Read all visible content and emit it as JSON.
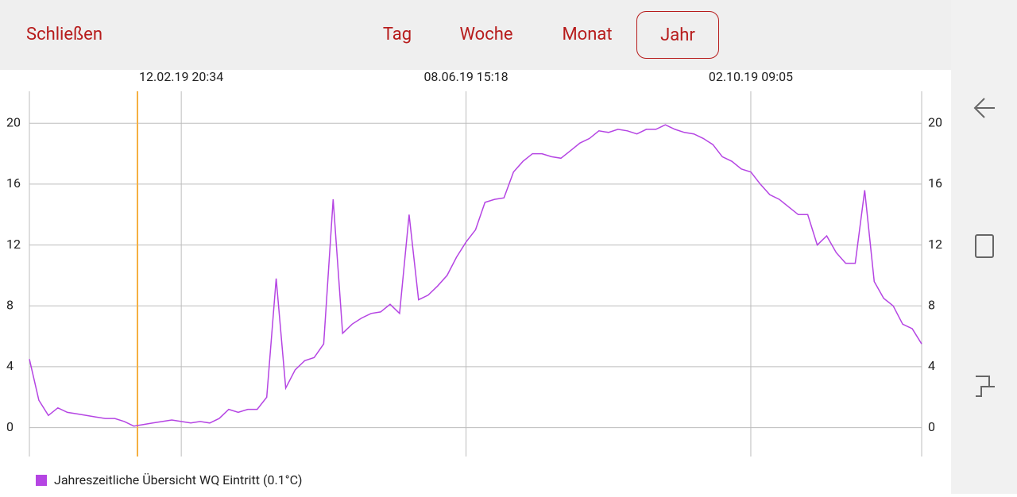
{
  "header": {
    "close": "Schließen",
    "tabs": [
      "Tag",
      "Woche",
      "Monat",
      "Jahr"
    ],
    "selected": 3
  },
  "chart_data": {
    "type": "line",
    "categories": [
      null,
      null,
      null,
      null,
      null,
      null,
      null,
      null,
      null,
      null,
      null,
      null,
      null,
      null,
      null,
      null,
      "12.02.19 20:34",
      null,
      null,
      null,
      null,
      null,
      null,
      null,
      null,
      null,
      null,
      null,
      null,
      null,
      null,
      null,
      null,
      null,
      null,
      null,
      null,
      null,
      null,
      null,
      null,
      null,
      null,
      null,
      null,
      null,
      "08.06.19 15:18",
      null,
      null,
      null,
      null,
      null,
      null,
      null,
      null,
      null,
      null,
      null,
      null,
      null,
      null,
      null,
      null,
      null,
      null,
      null,
      null,
      null,
      null,
      null,
      null,
      null,
      null,
      null,
      null,
      null,
      "02.10.19 09:05",
      null,
      null,
      null,
      null,
      null,
      null,
      null,
      null,
      null,
      null,
      null,
      null,
      null,
      null,
      null,
      null,
      null,
      null
    ],
    "series": [
      {
        "name": "Jahreszeitliche Übersicht WQ Eintritt (0.1°C)",
        "color": "#b545e3",
        "values": [
          4.5,
          1.8,
          0.8,
          1.3,
          1.0,
          0.9,
          0.8,
          0.7,
          0.6,
          0.6,
          0.4,
          0.1,
          0.2,
          0.3,
          0.4,
          0.5,
          0.4,
          0.3,
          0.4,
          0.3,
          0.6,
          1.2,
          1.0,
          1.2,
          1.2,
          2.0,
          9.8,
          2.6,
          3.8,
          4.4,
          4.6,
          5.5,
          15.0,
          6.2,
          6.8,
          7.2,
          7.5,
          7.6,
          8.1,
          7.5,
          14.0,
          8.4,
          8.7,
          9.3,
          10.0,
          11.2,
          12.2,
          13.0,
          14.8,
          15.0,
          15.1,
          16.8,
          17.5,
          18.0,
          18.0,
          17.8,
          17.7,
          18.2,
          18.7,
          19.0,
          19.5,
          19.4,
          19.6,
          19.5,
          19.3,
          19.6,
          19.6,
          19.9,
          19.6,
          19.4,
          19.3,
          19.0,
          18.6,
          17.8,
          17.5,
          17.0,
          16.8,
          16.0,
          15.3,
          15.0,
          14.5,
          14.0,
          14.0,
          12.0,
          12.6,
          11.5,
          10.8,
          10.8,
          15.6,
          9.6,
          8.5,
          8.0,
          6.8,
          6.5,
          5.5
        ]
      }
    ],
    "ylim": [
      -1.9,
      22.1
    ],
    "yticks": [
      0,
      4,
      8,
      12,
      16,
      20
    ],
    "y2lim": [
      -1.9,
      22.1
    ],
    "y2ticks": [
      0,
      4,
      8,
      12,
      16,
      20
    ],
    "grid": true
  }
}
